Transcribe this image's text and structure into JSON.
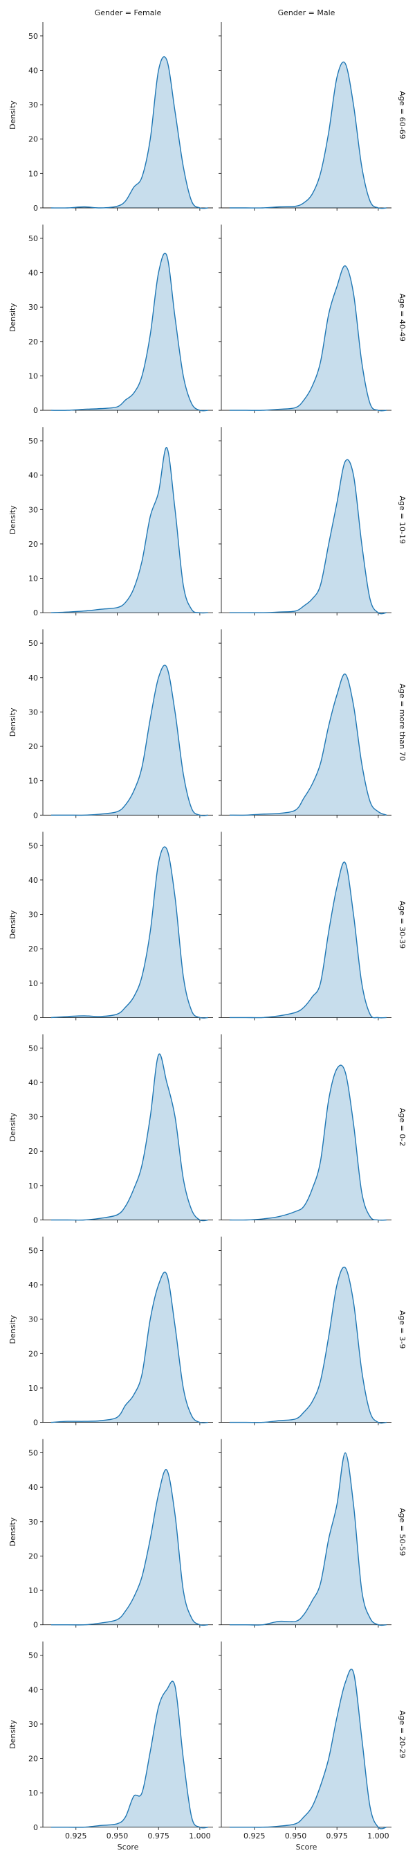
{
  "figure": {
    "col_titles": [
      "Gender = Female",
      "Gender = Male"
    ],
    "xlabel": "Score",
    "ylabel": "Density",
    "row_titles": [
      "Age = 60-69",
      "Age = 40-49",
      "Age = 10-19",
      "Age = more than 70",
      "Age = 30-39",
      "Age = 0-2",
      "Age = 3-9",
      "Age = 50-59",
      "Age = 20-29"
    ]
  },
  "chart_data": {
    "type": "area",
    "subtype": "kde facet grid",
    "rows_facet": "Age",
    "cols_facet": "Gender",
    "xlabel": "Score",
    "ylabel": "Density",
    "xlim": [
      0.905,
      1.008
    ],
    "ylim": [
      0,
      54
    ],
    "x_ticks": [
      0.925,
      0.95,
      0.975,
      1.0
    ],
    "x_tick_labels": [
      "0.925",
      "0.950",
      "0.975",
      "1.000"
    ],
    "y_ticks": [
      0,
      10,
      20,
      30,
      40,
      50
    ],
    "y_tick_labels": [
      "0",
      "10",
      "20",
      "30",
      "40",
      "50"
    ],
    "line_color": "#1f77b4",
    "fill_color": "#1f77b4",
    "fill_opacity": 0.25,
    "x_grid": [
      0.91,
      0.92,
      0.93,
      0.94,
      0.95,
      0.955,
      0.96,
      0.965,
      0.97,
      0.975,
      0.98,
      0.985,
      0.99,
      0.995,
      1.0,
      1.005
    ],
    "panels": [
      {
        "row": "Age = 60-69",
        "col": "Gender = Female",
        "density": [
          0,
          0,
          0.3,
          0,
          0.5,
          2,
          6,
          9,
          20,
          40,
          43,
          28,
          12,
          2,
          0,
          0
        ]
      },
      {
        "row": "Age = 60-69",
        "col": "Gender = Male",
        "density": [
          0,
          0,
          0,
          0.3,
          0.5,
          1.5,
          4,
          10,
          22,
          38,
          42,
          30,
          12,
          2,
          0,
          0
        ]
      },
      {
        "row": "Age = 40-49",
        "col": "Gender = Female",
        "density": [
          0,
          0,
          0.3,
          0.5,
          1,
          3,
          5,
          10,
          22,
          40,
          45,
          27,
          10,
          2,
          0,
          0
        ]
      },
      {
        "row": "Age = 40-49",
        "col": "Gender = Male",
        "density": [
          0,
          0,
          0,
          0.3,
          0.8,
          3,
          7,
          14,
          28,
          36,
          42,
          34,
          14,
          2,
          0,
          0
        ]
      },
      {
        "row": "Age = 10-19",
        "col": "Gender = Female",
        "density": [
          0,
          0.2,
          0.5,
          1,
          1.5,
          3,
          7,
          15,
          28,
          35,
          48,
          30,
          8,
          1,
          0,
          0
        ]
      },
      {
        "row": "Age = 10-19",
        "col": "Gender = Male",
        "density": [
          0,
          0,
          0,
          0.2,
          0.5,
          2,
          4,
          8,
          20,
          32,
          44,
          40,
          20,
          4,
          0,
          0
        ]
      },
      {
        "row": "Age = more than 70",
        "col": "Gender = Female",
        "density": [
          0,
          0,
          0,
          0.3,
          1,
          3,
          7,
          14,
          28,
          40,
          43,
          30,
          12,
          2,
          0,
          0
        ]
      },
      {
        "row": "Age = more than 70",
        "col": "Gender = Male",
        "density": [
          0,
          0,
          0.3,
          0.5,
          1.5,
          5,
          9,
          15,
          26,
          35,
          41,
          32,
          15,
          4,
          1,
          0
        ]
      },
      {
        "row": "Age = 30-39",
        "col": "Gender = Female",
        "density": [
          0,
          0.3,
          0.5,
          0.3,
          1,
          3,
          6,
          12,
          25,
          45,
          49,
          35,
          12,
          2,
          0,
          0
        ]
      },
      {
        "row": "Age = 30-39",
        "col": "Gender = Male",
        "density": [
          0,
          0,
          0,
          0.5,
          1.5,
          3,
          6,
          10,
          25,
          38,
          45,
          30,
          10,
          1,
          0,
          0
        ]
      },
      {
        "row": "Age = 0-2",
        "col": "Gender = Female",
        "density": [
          0,
          0,
          0,
          0.5,
          1.5,
          4,
          9,
          16,
          30,
          48,
          40,
          30,
          12,
          3,
          0,
          0
        ]
      },
      {
        "row": "Age = 0-2",
        "col": "Gender = Male",
        "density": [
          0,
          0,
          0.3,
          1,
          2.5,
          4,
          9,
          17,
          35,
          44,
          43,
          28,
          8,
          1,
          0,
          0
        ]
      },
      {
        "row": "Age = 3-9",
        "col": "Gender = Female",
        "density": [
          0,
          0.3,
          0.3,
          0.5,
          1.5,
          5,
          8,
          14,
          30,
          40,
          43,
          28,
          10,
          2,
          0,
          0
        ]
      },
      {
        "row": "Age = 3-9",
        "col": "Gender = Male",
        "density": [
          0,
          0,
          0,
          0.5,
          1,
          3,
          6,
          12,
          25,
          40,
          45,
          35,
          15,
          3,
          0,
          0
        ]
      },
      {
        "row": "Age = 50-59",
        "col": "Gender = Female",
        "density": [
          0,
          0,
          0,
          0.5,
          1.5,
          4,
          8,
          14,
          25,
          38,
          45,
          32,
          10,
          2,
          0,
          0
        ]
      },
      {
        "row": "Age = 50-59",
        "col": "Gender = Male",
        "density": [
          0,
          0,
          0,
          1,
          1,
          3,
          7,
          12,
          25,
          35,
          50,
          35,
          10,
          2,
          0,
          0
        ]
      },
      {
        "row": "Age = 20-29",
        "col": "Gender = Female",
        "density": [
          0,
          0,
          0,
          0.5,
          1,
          3,
          9,
          10,
          22,
          35,
          40,
          41,
          20,
          3,
          0,
          0
        ]
      },
      {
        "row": "Age = 20-29",
        "col": "Gender = Male",
        "density": [
          0,
          0,
          0,
          0.3,
          1,
          3,
          6,
          12,
          20,
          32,
          42,
          45,
          26,
          6,
          0,
          0
        ]
      }
    ]
  }
}
